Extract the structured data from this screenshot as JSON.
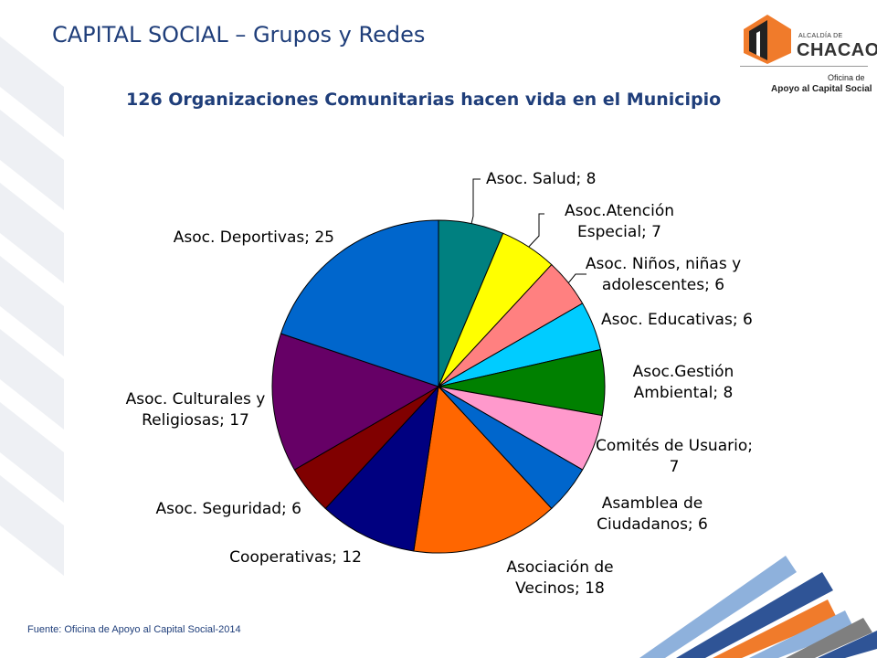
{
  "header": {
    "title": "CAPITAL SOCIAL – Grupos y Redes"
  },
  "logo": {
    "small_text": "ALCALDÍA DE",
    "name": "CHACAO",
    "office_line1": "Oficina de",
    "office_line2": "Apoyo al Capital Social"
  },
  "footer": {
    "source": "Fuente: Oficina de Apoyo al Capital Social-2014"
  },
  "colors": {
    "title": "#1f3e7a"
  },
  "chart_data": {
    "type": "pie",
    "title": "126 Organizaciones Comunitarias hacen vida en el Municipio",
    "slices": [
      {
        "name": "Asoc. Salud",
        "value": 8,
        "color": "#008080",
        "label_lines": [
          "Asoc. Salud; 8"
        ]
      },
      {
        "name": "Asoc.Atención Especial",
        "value": 7,
        "color": "#ffff00",
        "label_lines": [
          "Asoc.Atención",
          "Especial; 7"
        ]
      },
      {
        "name": "Asoc. Niños, niñas y adolescentes",
        "value": 6,
        "color": "#ff8080",
        "label_lines": [
          "Asoc. Niños, niñas y",
          "adolescentes; 6"
        ]
      },
      {
        "name": "Asoc. Educativas",
        "value": 6,
        "color": "#00ccff",
        "label_lines": [
          "Asoc. Educativas; 6"
        ]
      },
      {
        "name": "Asoc.Gestión Ambiental",
        "value": 8,
        "color": "#008000",
        "label_lines": [
          "Asoc.Gestión",
          "Ambiental; 8"
        ]
      },
      {
        "name": "Comités de Usuario",
        "value": 7,
        "color": "#ff99cc",
        "label_lines": [
          "Comités de Usuario;",
          "7"
        ]
      },
      {
        "name": "Asamblea de Ciudadanos",
        "value": 6,
        "color": "#0066cc",
        "label_lines": [
          "Asamblea de",
          "Ciudadanos; 6"
        ]
      },
      {
        "name": "Asociación de Vecinos",
        "value": 18,
        "color": "#ff6600",
        "label_lines": [
          "Asociación de",
          "Vecinos; 18"
        ]
      },
      {
        "name": "Cooperativas",
        "value": 12,
        "color": "#000080",
        "label_lines": [
          "Cooperativas; 12"
        ]
      },
      {
        "name": "Asoc. Seguridad",
        "value": 6,
        "color": "#800000",
        "label_lines": [
          "Asoc. Seguridad; 6"
        ]
      },
      {
        "name": "Asoc. Culturales y Religiosas",
        "value": 17,
        "color": "#660066",
        "label_lines": [
          "Asoc. Culturales y",
          "Religiosas; 17"
        ]
      },
      {
        "name": "Asoc. Deportivas",
        "value": 25,
        "color": "#0066cc",
        "label_lines": [
          "Asoc. Deportivas; 25"
        ]
      }
    ]
  }
}
